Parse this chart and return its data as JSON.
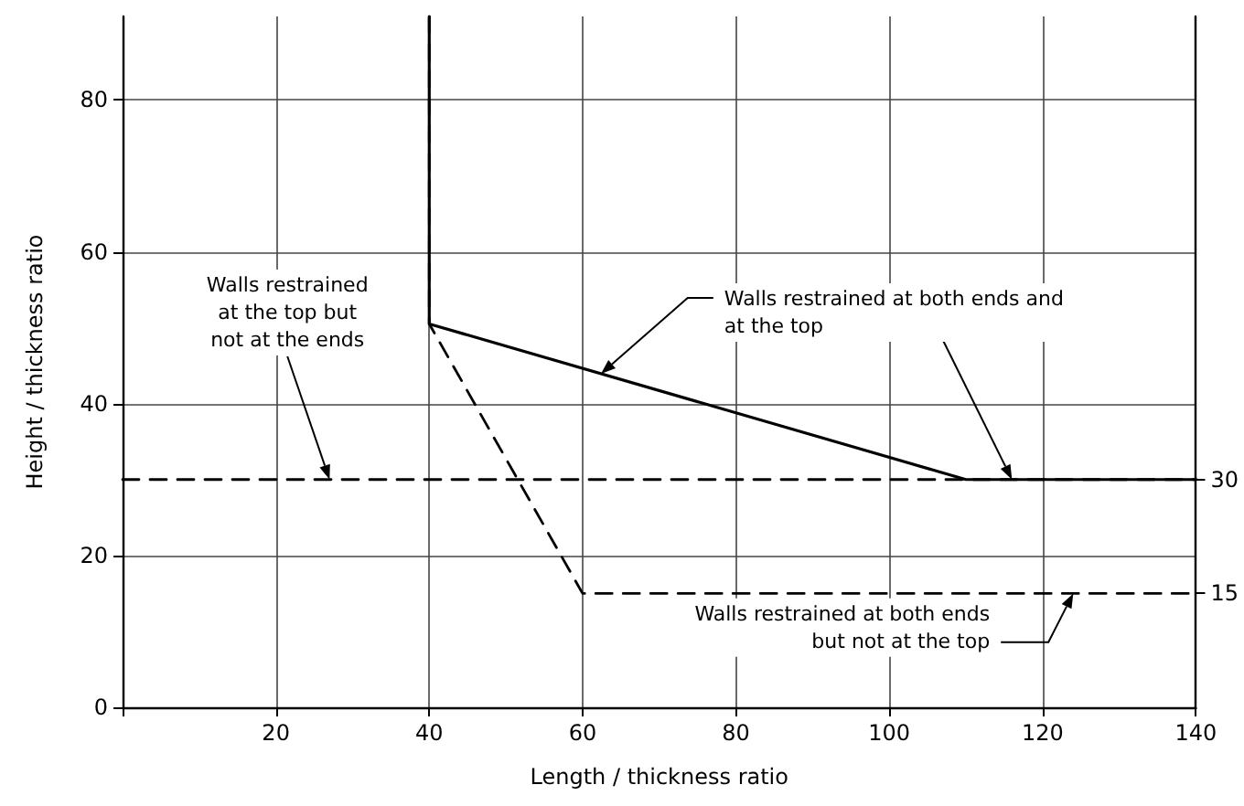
{
  "chart_data": {
    "type": "line",
    "xlabel": "Length / thickness ratio",
    "ylabel": "Height / thickness ratio",
    "xlim": [
      0,
      140
    ],
    "xticks": [
      {
        "value": 0,
        "label": null
      },
      20,
      40,
      60,
      80,
      100,
      120,
      140
    ],
    "ylim": [
      0,
      91
    ],
    "yticks": [
      0,
      20,
      40,
      60,
      80
    ],
    "y2lim": [
      0,
      91
    ],
    "y2ticks": [
      15,
      30
    ],
    "grid": true,
    "marker": "none",
    "series": [
      {
        "color": "#000000",
        "line_style": "solid",
        "x": [
          40,
          40,
          110,
          140
        ],
        "values": [
          91,
          50.5,
          30,
          30
        ]
      },
      {
        "color": "#000000",
        "line_style": "dashed",
        "x": [
          40,
          40,
          60,
          140
        ],
        "values": [
          91,
          50.5,
          15,
          15
        ]
      },
      {
        "color": "#000000",
        "line_style": "dashed",
        "x": [
          0,
          140
        ],
        "values": [
          30,
          30
        ]
      }
    ],
    "annotations": [
      {
        "text": "Walls restrained\nat the top but\nnot at the ends",
        "x": 27,
        "y": 30
      },
      {
        "text": "Walls restrained at both ends and\nat the top",
        "x": 116,
        "y": 30
      },
      {
        "text": "Walls restrained at both ends\nbut not at the top",
        "x": 124,
        "y": 15
      }
    ]
  }
}
